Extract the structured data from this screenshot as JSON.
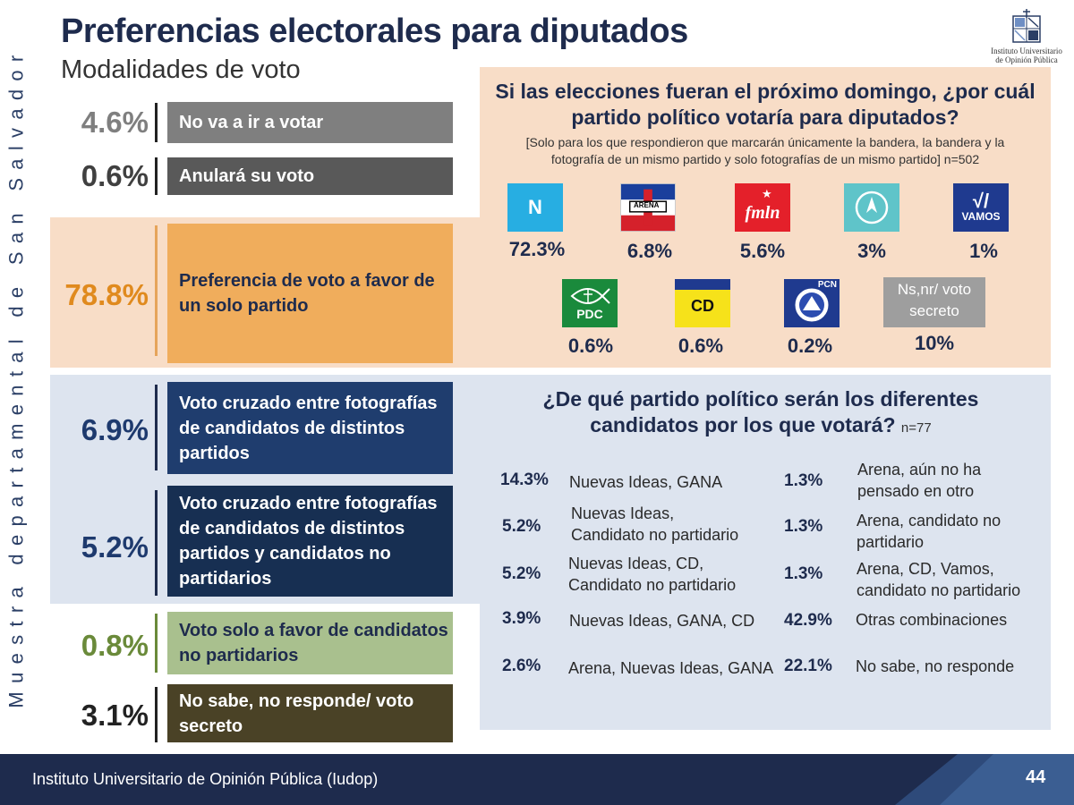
{
  "side_label": "Muestra departamental de San Salvador",
  "header": {
    "title": "Preferencias electorales para diputados",
    "subtitle": "Modalidades de voto",
    "logo_text": "Instituto Universitario de Opinión Pública"
  },
  "colors": {
    "navy": "#1e2b4d",
    "orange_band": "#f8ddc7",
    "blue_band": "#dde4ef",
    "orange_text": "#e08a1e",
    "green_text": "#6a8a3a"
  },
  "chart_data": [
    {
      "type": "table",
      "title": "Modalidades de voto",
      "rows": [
        {
          "value": "4.6%",
          "label": "No va a ir a votar",
          "color": "#7f7f7f"
        },
        {
          "value": "0.6%",
          "label": "Anulará su voto",
          "color": "#595959"
        },
        {
          "value": "78.8%",
          "label": "Preferencia de voto a favor de un solo partido",
          "color": "#f0ad5c"
        },
        {
          "value": "6.9%",
          "label": "Voto cruzado entre fotografías de candidatos de distintos partidos",
          "color": "#1f3d6e"
        },
        {
          "value": "5.2%",
          "label": "Voto cruzado entre fotografías de candidatos de distintos partidos y candidatos no partidarios",
          "color": "#172f52"
        },
        {
          "value": "0.8%",
          "label": "Voto solo a favor de candidatos no partidarios",
          "color": "#a9c08e"
        },
        {
          "value": "3.1%",
          "label": "No sabe, no responde/ voto secreto",
          "color": "#4a4226"
        }
      ]
    },
    {
      "type": "table",
      "title": "Si las elecciones fueran el próximo domingo, ¿por cuál partido político votaría para diputados?",
      "note": "[Solo para los que respondieron que marcarán únicamente la bandera, la bandera y la fotografía de un mismo partido y solo fotografías de un mismo partido] n=502",
      "parties": [
        {
          "name": "N",
          "value": "72.3%"
        },
        {
          "name": "ARENA",
          "value": "6.8%"
        },
        {
          "name": "fmln",
          "value": "5.6%"
        },
        {
          "name": "GANA",
          "value": "3%"
        },
        {
          "name": "VAMOS",
          "value": "1%"
        },
        {
          "name": "PDC",
          "value": "0.6%"
        },
        {
          "name": "CD",
          "value": "0.6%"
        },
        {
          "name": "PCN",
          "value": "0.2%"
        },
        {
          "name": "Ns,nr/ voto secreto",
          "value": "10%"
        }
      ]
    },
    {
      "type": "table",
      "title": "¿De qué partido político serán los diferentes candidatos por los que votará?",
      "n": "n=77",
      "combos": [
        {
          "value": "14.3%",
          "label": "Nuevas Ideas, GANA"
        },
        {
          "value": "5.2%",
          "label": "Nuevas Ideas, Candidato no partidario"
        },
        {
          "value": "5.2%",
          "label": "Nuevas Ideas, CD, Candidato no partidario"
        },
        {
          "value": "3.9%",
          "label": "Nuevas Ideas, GANA, CD"
        },
        {
          "value": "2.6%",
          "label": "Arena, Nuevas Ideas, GANA"
        },
        {
          "value": "1.3%",
          "label": "Arena, aún no ha pensado en otro"
        },
        {
          "value": "1.3%",
          "label": "Arena, candidato no partidario"
        },
        {
          "value": "1.3%",
          "label": "Arena, CD, Vamos, candidato no partidario"
        },
        {
          "value": "42.9%",
          "label": "Otras combinaciones"
        },
        {
          "value": "22.1%",
          "label": "No sabe, no responde"
        }
      ]
    }
  ],
  "footer": {
    "text": "Instituto Universitario de Opinión Pública (Iudop)",
    "page": "44"
  }
}
